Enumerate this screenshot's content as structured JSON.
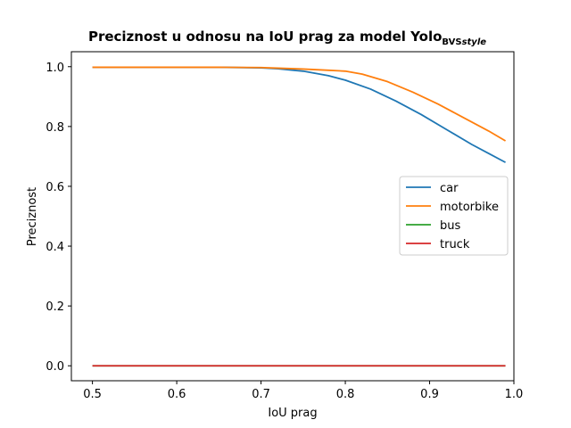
{
  "chart_data": {
    "type": "line",
    "title": {
      "main": "Preciznost u odnosu na IoU prag za model Yolo",
      "subscript": "BVS",
      "subscript_italic": "style"
    },
    "xlabel": "IoU prag",
    "ylabel": "Preciznost",
    "xlim": [
      0.475,
      1.0
    ],
    "ylim": [
      -0.05,
      1.05
    ],
    "xticks": [
      0.5,
      0.6,
      0.7,
      0.8,
      0.9,
      1.0
    ],
    "xtick_labels": [
      "0.5",
      "0.6",
      "0.7",
      "0.8",
      "0.9",
      "1.0"
    ],
    "yticks": [
      0.0,
      0.2,
      0.4,
      0.6,
      0.8,
      1.0
    ],
    "ytick_labels": [
      "0.0",
      "0.2",
      "0.4",
      "0.6",
      "0.8",
      "1.0"
    ],
    "grid": false,
    "legend_position": "center-right",
    "series": [
      {
        "name": "car",
        "color": "#1f77b4",
        "x": [
          0.5,
          0.55,
          0.6,
          0.65,
          0.7,
          0.72,
          0.75,
          0.78,
          0.8,
          0.83,
          0.86,
          0.89,
          0.92,
          0.95,
          0.97,
          0.99
        ],
        "y": [
          0.998,
          0.998,
          0.998,
          0.998,
          0.996,
          0.993,
          0.985,
          0.97,
          0.955,
          0.925,
          0.885,
          0.84,
          0.79,
          0.74,
          0.71,
          0.68
        ]
      },
      {
        "name": "motorbike",
        "color": "#ff7f0e",
        "x": [
          0.5,
          0.55,
          0.6,
          0.65,
          0.7,
          0.72,
          0.75,
          0.78,
          0.8,
          0.82,
          0.85,
          0.88,
          0.91,
          0.94,
          0.97,
          0.99
        ],
        "y": [
          0.998,
          0.998,
          0.998,
          0.998,
          0.997,
          0.995,
          0.992,
          0.988,
          0.985,
          0.975,
          0.95,
          0.915,
          0.875,
          0.83,
          0.785,
          0.752
        ]
      },
      {
        "name": "bus",
        "color": "#2ca02c",
        "x": [
          0.5,
          0.99
        ],
        "y": [
          0.0,
          0.0
        ]
      },
      {
        "name": "truck",
        "color": "#d62728",
        "x": [
          0.5,
          0.99
        ],
        "y": [
          0.0,
          0.0
        ]
      }
    ]
  }
}
